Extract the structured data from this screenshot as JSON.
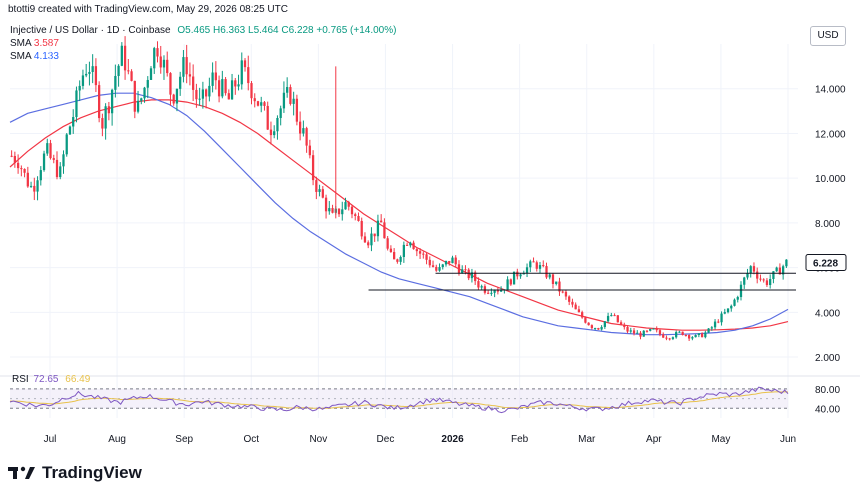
{
  "header": {
    "text": "btotti9 created with TradingView.com, May 29, 2026 08:25 UTC"
  },
  "legend": {
    "symbol": "Injective / US Dollar · 1D · Coinbase",
    "ohlc": "O5.465 H6.363 L5.464 C6.228 +0.765 (+14.00%)",
    "sma1_label": "SMA",
    "sma1_value": "3.587",
    "sma2_label": "SMA",
    "sma2_value": "4.133"
  },
  "currency_button": "USD",
  "rsi": {
    "label": "RSI",
    "value": "72.65",
    "value2": "66.49"
  },
  "footer": {
    "brand": "TradingView"
  },
  "colors": {
    "up": "#089981",
    "down": "#f23645",
    "sma_red": "#f23645",
    "sma_blue": "#5b6ee1",
    "rsi_line": "#7e57c2",
    "rsi_band": "#ede7f6",
    "rsi_ma": "#e8c14a"
  },
  "chart_data": {
    "type": "candlestick",
    "title": "",
    "x_ticks": [
      "Jul",
      "Aug",
      "Sep",
      "Oct",
      "Nov",
      "Dec",
      "2026",
      "Feb",
      "Mar",
      "Apr",
      "May",
      "Jun"
    ],
    "y_ticks": [
      "2.000",
      "4.000",
      "6.000",
      "8.000",
      "10.000",
      "12.000",
      "14.000"
    ],
    "ylim": [
      1.6,
      16.0
    ],
    "last_price": "6.228",
    "support_levels": [
      5.0,
      5.75
    ],
    "months_close": [
      {
        "month": "Jun",
        "close": 11.5
      },
      {
        "month": "Jul",
        "close": 13.5
      },
      {
        "month": "Aug",
        "close": 14.2
      },
      {
        "month": "Sep",
        "close": 13.3
      },
      {
        "month": "Oct",
        "close": 8.6
      },
      {
        "month": "Nov",
        "close": 6.4
      },
      {
        "month": "Dec",
        "close": 5.0
      },
      {
        "month": "Jan",
        "close": 5.8
      },
      {
        "month": "Feb",
        "close": 3.2
      },
      {
        "month": "Mar",
        "close": 2.9
      },
      {
        "month": "Apr",
        "close": 3.2
      },
      {
        "month": "May",
        "close": 5.4
      },
      {
        "month": "Jun",
        "close": 6.228
      }
    ],
    "price_path": [
      11.0,
      10.8,
      10.0,
      9.5,
      10.5,
      11.2,
      10.6,
      10.2,
      12.0,
      13.0,
      14.5,
      15.2,
      14.0,
      12.5,
      13.5,
      14.8,
      15.6,
      14.2,
      13.0,
      14.0,
      15.4,
      16.0,
      14.8,
      13.6,
      14.5,
      15.2,
      14.0,
      13.2,
      13.8,
      14.6,
      14.0,
      13.4,
      14.2,
      14.8,
      14.3,
      13.6,
      13.0,
      12.2,
      12.8,
      13.4,
      13.8,
      12.6,
      11.8,
      10.2,
      9.4,
      8.8,
      8.2,
      8.6,
      8.9,
      8.4,
      7.8,
      7.2,
      7.6,
      8.0,
      6.6,
      6.2,
      6.9,
      7.4,
      6.8,
      6.5,
      6.2,
      5.8,
      6.1,
      6.4,
      6.0,
      5.7,
      5.6,
      5.2,
      5.0,
      5.1,
      5.0,
      5.3,
      5.6,
      5.9,
      6.0,
      6.2,
      5.9,
      5.6,
      5.2,
      4.8,
      4.4,
      4.0,
      3.7,
      3.4,
      3.3,
      3.6,
      3.9,
      3.5,
      3.2,
      3.1,
      3.0,
      3.1,
      3.2,
      3.0,
      2.9,
      3.0,
      3.1,
      2.95,
      2.9,
      3.0,
      3.2,
      3.6,
      3.9,
      4.2,
      4.8,
      5.5,
      6.1,
      5.6,
      5.3,
      5.6,
      5.9,
      6.228
    ],
    "sma_blue_path": [
      12.5,
      12.9,
      13.1,
      13.3,
      13.5,
      13.7,
      13.8,
      13.8,
      13.6,
      13.3,
      12.8,
      12.1,
      11.3,
      10.5,
      9.7,
      8.9,
      8.2,
      7.6,
      7.1,
      6.6,
      6.2,
      5.8,
      5.5,
      5.3,
      5.1,
      4.9,
      4.7,
      4.4,
      4.1,
      3.8,
      3.6,
      3.4,
      3.3,
      3.2,
      3.1,
      3.05,
      3.0,
      3.0,
      3.02,
      3.05,
      3.1,
      3.2,
      3.4,
      3.7,
      4.133
    ],
    "sma_red_path": [
      10.5,
      11.2,
      11.8,
      12.3,
      12.7,
      13.0,
      13.2,
      13.4,
      13.5,
      13.5,
      13.4,
      13.2,
      12.9,
      12.5,
      12.0,
      11.4,
      10.8,
      10.2,
      9.6,
      9.0,
      8.4,
      7.9,
      7.4,
      6.9,
      6.5,
      6.1,
      5.7,
      5.3,
      5.0,
      4.7,
      4.4,
      4.1,
      3.9,
      3.7,
      3.5,
      3.4,
      3.3,
      3.25,
      3.2,
      3.2,
      3.22,
      3.25,
      3.3,
      3.4,
      3.587
    ],
    "rsi_path": [
      55,
      50,
      45,
      48,
      62,
      70,
      64,
      58,
      52,
      60,
      66,
      60,
      52,
      48,
      54,
      50,
      46,
      44,
      42,
      38,
      36,
      42,
      40,
      38,
      44,
      48,
      52,
      46,
      40,
      44,
      52,
      58,
      54,
      48,
      44,
      40,
      36,
      38,
      46,
      52,
      50,
      44,
      40,
      38,
      42,
      48,
      54,
      56,
      52,
      50,
      60,
      66,
      70,
      68,
      74,
      80,
      76,
      72.65
    ],
    "rsi_range": [
      20,
      90
    ],
    "rsi_ticks": [
      "80.00",
      "40.00"
    ]
  }
}
